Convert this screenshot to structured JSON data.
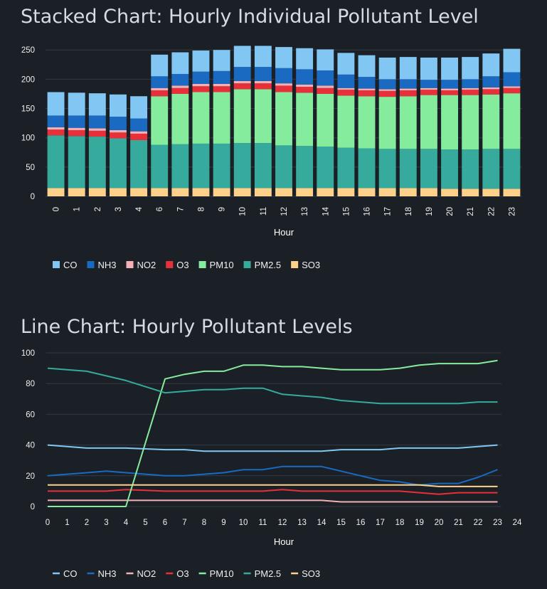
{
  "chart_data": [
    {
      "type": "bar",
      "stacked": true,
      "title": "Stacked Chart: Hourly Individual Pollutant Level",
      "xlabel": "Hour",
      "ylabel": "",
      "ylim": [
        0,
        260
      ],
      "yticks": [
        0,
        50,
        100,
        150,
        200,
        250
      ],
      "grid": true,
      "legend_position": "bottom-left",
      "categories": [
        "0",
        "1",
        "2",
        "3",
        "4",
        "6",
        "7",
        "8",
        "9",
        "10",
        "11",
        "12",
        "13",
        "14",
        "15",
        "16",
        "17",
        "18",
        "19",
        "20",
        "21",
        "22",
        "23"
      ],
      "series": [
        {
          "name": "SO3",
          "color": "#fdd18a",
          "values": [
            14,
            14,
            14,
            14,
            14,
            14,
            14,
            14,
            14,
            14,
            14,
            14,
            14,
            14,
            14,
            14,
            14,
            14,
            14,
            13,
            13,
            13,
            13
          ]
        },
        {
          "name": "PM2.5",
          "color": "#36aa9c",
          "values": [
            90,
            89,
            88,
            85,
            82,
            74,
            75,
            76,
            76,
            77,
            77,
            73,
            72,
            71,
            69,
            68,
            67,
            67,
            67,
            67,
            67,
            68,
            68
          ]
        },
        {
          "name": "PM10",
          "color": "#86ec9d",
          "values": [
            0,
            0,
            0,
            0,
            0,
            83,
            86,
            88,
            88,
            92,
            92,
            91,
            91,
            90,
            89,
            89,
            89,
            90,
            92,
            93,
            93,
            93,
            95
          ]
        },
        {
          "name": "O3",
          "color": "#e8303a",
          "values": [
            10,
            10,
            10,
            10,
            11,
            10,
            10,
            10,
            10,
            10,
            10,
            11,
            10,
            10,
            10,
            10,
            10,
            10,
            9,
            8,
            9,
            9,
            9
          ]
        },
        {
          "name": "NO2",
          "color": "#f3b0b5",
          "values": [
            4,
            4,
            4,
            4,
            4,
            4,
            4,
            4,
            4,
            4,
            4,
            4,
            4,
            4,
            3,
            3,
            3,
            3,
            3,
            3,
            3,
            3,
            3
          ]
        },
        {
          "name": "NH3",
          "color": "#1a6ac2",
          "values": [
            20,
            21,
            22,
            23,
            22,
            20,
            20,
            21,
            22,
            24,
            24,
            26,
            26,
            26,
            23,
            20,
            17,
            16,
            14,
            15,
            15,
            19,
            24
          ]
        },
        {
          "name": "CO",
          "color": "#82c7f3",
          "values": [
            40,
            39,
            38,
            38,
            38,
            37,
            37,
            36,
            36,
            36,
            36,
            36,
            36,
            36,
            37,
            37,
            37,
            38,
            38,
            38,
            38,
            39,
            40
          ]
        }
      ],
      "legend_order": [
        "CO",
        "NH3",
        "NO2",
        "O3",
        "PM10",
        "PM2.5",
        "SO3"
      ]
    },
    {
      "type": "line",
      "title": "Line Chart: Hourly Pollutant Levels",
      "xlabel": "Hour",
      "ylabel": "",
      "ylim": [
        0,
        100
      ],
      "yticks": [
        0,
        20,
        40,
        60,
        80,
        100
      ],
      "xlim": [
        0,
        24
      ],
      "xticks": [
        0,
        1,
        2,
        3,
        4,
        5,
        6,
        7,
        8,
        9,
        10,
        11,
        12,
        13,
        14,
        15,
        16,
        17,
        18,
        19,
        20,
        21,
        22,
        23,
        24
      ],
      "grid": true,
      "legend_position": "bottom-left",
      "x": [
        0,
        1,
        2,
        3,
        4,
        6,
        7,
        8,
        9,
        10,
        11,
        12,
        13,
        14,
        15,
        16,
        17,
        18,
        19,
        20,
        21,
        22,
        23
      ],
      "series": [
        {
          "name": "CO",
          "color": "#82c7f3",
          "values": [
            40,
            39,
            38,
            38,
            38,
            37,
            37,
            36,
            36,
            36,
            36,
            36,
            36,
            36,
            37,
            37,
            37,
            38,
            38,
            38,
            38,
            39,
            40
          ]
        },
        {
          "name": "NH3",
          "color": "#1a6ac2",
          "values": [
            20,
            21,
            22,
            23,
            22,
            20,
            20,
            21,
            22,
            24,
            24,
            26,
            26,
            26,
            23,
            20,
            17,
            16,
            14,
            15,
            15,
            19,
            24
          ]
        },
        {
          "name": "NO2",
          "color": "#f3b0b5",
          "values": [
            4,
            4,
            4,
            4,
            4,
            4,
            4,
            4,
            4,
            4,
            4,
            4,
            4,
            4,
            3,
            3,
            3,
            3,
            3,
            3,
            3,
            3,
            3
          ]
        },
        {
          "name": "O3",
          "color": "#e8303a",
          "values": [
            10,
            10,
            10,
            10,
            11,
            10,
            10,
            10,
            10,
            10,
            10,
            11,
            10,
            10,
            10,
            10,
            10,
            10,
            9,
            8,
            9,
            9,
            9
          ]
        },
        {
          "name": "PM10",
          "color": "#86ec9d",
          "values": [
            0,
            0,
            0,
            0,
            0,
            83,
            86,
            88,
            88,
            92,
            92,
            91,
            91,
            90,
            89,
            89,
            89,
            90,
            92,
            93,
            93,
            93,
            95
          ]
        },
        {
          "name": "PM2.5",
          "color": "#36aa9c",
          "values": [
            90,
            89,
            88,
            85,
            82,
            74,
            75,
            76,
            76,
            77,
            77,
            73,
            72,
            71,
            69,
            68,
            67,
            67,
            67,
            67,
            67,
            68,
            68
          ]
        },
        {
          "name": "SO3",
          "color": "#fdd18a",
          "values": [
            14,
            14,
            14,
            14,
            14,
            14,
            14,
            14,
            14,
            14,
            14,
            14,
            14,
            14,
            14,
            14,
            14,
            14,
            14,
            13,
            13,
            13,
            13
          ]
        }
      ]
    }
  ]
}
